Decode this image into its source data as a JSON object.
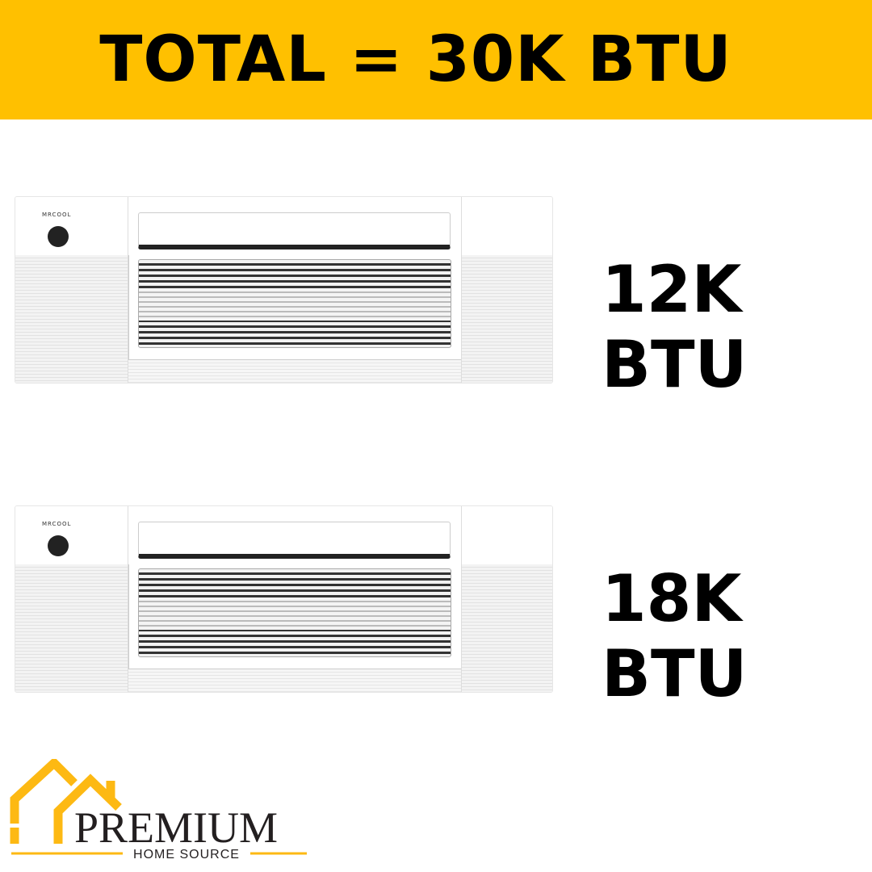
{
  "banner": {
    "title": "TOTAL = 30K BTU",
    "color": "#FFC000"
  },
  "units": [
    {
      "brand": "MRCOOL",
      "capacity": "12K BTU"
    },
    {
      "brand": "MRCOOL",
      "capacity": "18K BTU"
    }
  ],
  "logo": {
    "name": "PREMIUM",
    "tagline": "HOME SOURCE",
    "accent": "#FDB913"
  }
}
